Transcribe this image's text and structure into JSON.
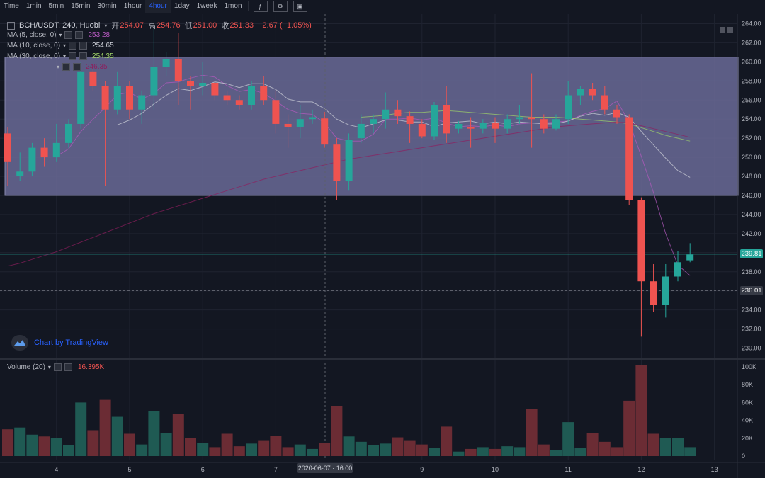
{
  "toolbar": {
    "intervals": [
      {
        "label": "Time",
        "active": false
      },
      {
        "label": "1min",
        "active": false
      },
      {
        "label": "5min",
        "active": false
      },
      {
        "label": "15min",
        "active": false
      },
      {
        "label": "30min",
        "active": false
      },
      {
        "label": "1hour",
        "active": false
      },
      {
        "label": "4hour",
        "active": true
      },
      {
        "label": "1day",
        "active": false
      },
      {
        "label": "1week",
        "active": false
      },
      {
        "label": "1mon",
        "active": false
      }
    ],
    "icons": [
      "indicator-icon",
      "settings-icon",
      "screenshot-icon"
    ]
  },
  "symbol": {
    "title": "BCH/USDT, 240, Huobi",
    "open_label": "开",
    "open": "254.07",
    "high_label": "高",
    "high": "254.76",
    "low_label": "低",
    "low": "251.00",
    "close_label": "收",
    "close": "251.33",
    "change": "−2.67 (−1.05%)"
  },
  "ma_legends": [
    {
      "label": "MA (5, close, 0)",
      "value": "253.28",
      "color": "#b75ac1"
    },
    {
      "label": "MA (10, close, 0)",
      "value": "254.65",
      "color": "#d1d4dc"
    },
    {
      "label": "MA (30, close, 0)",
      "value": "254.35",
      "color": "#a0d468"
    },
    {
      "label": "",
      "value": "246.35",
      "color": "#8e1e5e"
    }
  ],
  "brand": "Chart by TradingView",
  "volume_legend": {
    "label": "Volume (20)",
    "value": "16.395K"
  },
  "price_tags": [
    {
      "value": "239.81",
      "color": "#26a69a",
      "price": 239.81
    },
    {
      "value": "236.01",
      "color": "#363a45",
      "price": 236.01
    }
  ],
  "crosshair_time": "2020-06-07 · 16:00",
  "colors": {
    "up": "#26a69a",
    "down": "#ef5350",
    "band": "#6a6a96"
  },
  "chart_data": {
    "type": "candlestick",
    "title": "BCH/USDT, 240, Huobi",
    "price_axis": {
      "ylim": [
        229,
        265
      ],
      "ticks": [
        230,
        232,
        234,
        236,
        238,
        240,
        242,
        244,
        246,
        248,
        250,
        252,
        254,
        256,
        258,
        260,
        262,
        264
      ]
    },
    "time_axis": {
      "ticks": [
        {
          "label": "4",
          "idx": 4
        },
        {
          "label": "5",
          "idx": 10
        },
        {
          "label": "6",
          "idx": 16
        },
        {
          "label": "7",
          "idx": 22
        },
        {
          "label": "9",
          "idx": 34
        },
        {
          "label": "10",
          "idx": 40
        },
        {
          "label": "11",
          "idx": 46
        },
        {
          "label": "12",
          "idx": 52
        },
        {
          "label": "13",
          "idx": 58
        }
      ]
    },
    "highlight_band": {
      "y_from": 246.0,
      "y_to": 260.5
    },
    "candles": [
      {
        "o": 252.5,
        "h": 253.2,
        "l": 247.0,
        "c": 249.5
      },
      {
        "o": 248.0,
        "h": 250.5,
        "l": 247.5,
        "c": 248.5
      },
      {
        "o": 248.5,
        "h": 251.5,
        "l": 248.0,
        "c": 251.0
      },
      {
        "o": 251.0,
        "h": 252.0,
        "l": 249.0,
        "c": 250.0
      },
      {
        "o": 250.0,
        "h": 253.5,
        "l": 249.5,
        "c": 251.5
      },
      {
        "o": 251.5,
        "h": 254.0,
        "l": 251.0,
        "c": 253.5
      },
      {
        "o": 253.5,
        "h": 260.0,
        "l": 253.0,
        "c": 259.0
      },
      {
        "o": 259.0,
        "h": 259.5,
        "l": 257.0,
        "c": 257.5
      },
      {
        "o": 257.5,
        "h": 258.0,
        "l": 247.0,
        "c": 255.0
      },
      {
        "o": 255.0,
        "h": 259.0,
        "l": 254.5,
        "c": 257.5
      },
      {
        "o": 257.5,
        "h": 258.0,
        "l": 254.0,
        "c": 255.0
      },
      {
        "o": 255.0,
        "h": 257.0,
        "l": 253.5,
        "c": 256.5
      },
      {
        "o": 256.5,
        "h": 263.5,
        "l": 255.0,
        "c": 259.5
      },
      {
        "o": 259.5,
        "h": 261.0,
        "l": 258.5,
        "c": 260.3
      },
      {
        "o": 260.3,
        "h": 263.0,
        "l": 255.5,
        "c": 258.0
      },
      {
        "o": 258.0,
        "h": 258.5,
        "l": 255.0,
        "c": 257.5
      },
      {
        "o": 257.5,
        "h": 260.0,
        "l": 256.5,
        "c": 257.8
      },
      {
        "o": 257.8,
        "h": 258.0,
        "l": 256.0,
        "c": 256.5
      },
      {
        "o": 256.5,
        "h": 257.0,
        "l": 255.5,
        "c": 256.0
      },
      {
        "o": 256.0,
        "h": 256.5,
        "l": 255.0,
        "c": 255.5
      },
      {
        "o": 255.5,
        "h": 258.0,
        "l": 255.0,
        "c": 257.5
      },
      {
        "o": 257.5,
        "h": 258.5,
        "l": 255.5,
        "c": 256.0
      },
      {
        "o": 256.0,
        "h": 257.0,
        "l": 252.5,
        "c": 253.5
      },
      {
        "o": 253.5,
        "h": 254.5,
        "l": 251.0,
        "c": 253.2
      },
      {
        "o": 253.2,
        "h": 255.5,
        "l": 252.0,
        "c": 254.0
      },
      {
        "o": 254.0,
        "h": 255.0,
        "l": 253.5,
        "c": 254.2
      },
      {
        "o": 254.07,
        "h": 254.76,
        "l": 251.0,
        "c": 251.33
      },
      {
        "o": 251.33,
        "h": 252.0,
        "l": 245.5,
        "c": 247.5
      },
      {
        "o": 247.5,
        "h": 252.5,
        "l": 246.5,
        "c": 251.8
      },
      {
        "o": 252.0,
        "h": 254.5,
        "l": 251.5,
        "c": 253.5
      },
      {
        "o": 253.5,
        "h": 254.5,
        "l": 252.5,
        "c": 254.0
      },
      {
        "o": 254.0,
        "h": 256.8,
        "l": 253.0,
        "c": 255.0
      },
      {
        "o": 255.0,
        "h": 256.0,
        "l": 253.5,
        "c": 254.3
      },
      {
        "o": 254.3,
        "h": 254.8,
        "l": 251.5,
        "c": 253.5
      },
      {
        "o": 253.5,
        "h": 254.0,
        "l": 252.0,
        "c": 252.2
      },
      {
        "o": 252.2,
        "h": 255.8,
        "l": 251.8,
        "c": 255.5
      },
      {
        "o": 255.5,
        "h": 257.5,
        "l": 251.5,
        "c": 252.5
      },
      {
        "o": 253.0,
        "h": 253.8,
        "l": 252.5,
        "c": 253.5
      },
      {
        "o": 253.2,
        "h": 254.2,
        "l": 251.0,
        "c": 253.0
      },
      {
        "o": 253.0,
        "h": 254.0,
        "l": 252.5,
        "c": 253.6
      },
      {
        "o": 253.6,
        "h": 254.2,
        "l": 251.5,
        "c": 253.0
      },
      {
        "o": 253.0,
        "h": 254.5,
        "l": 252.5,
        "c": 254.0
      },
      {
        "o": 254.0,
        "h": 255.5,
        "l": 253.5,
        "c": 254.2
      },
      {
        "o": 254.2,
        "h": 258.8,
        "l": 251.0,
        "c": 254.0
      },
      {
        "o": 254.0,
        "h": 254.5,
        "l": 252.5,
        "c": 253.0
      },
      {
        "o": 253.0,
        "h": 254.5,
        "l": 252.8,
        "c": 254.0
      },
      {
        "o": 254.0,
        "h": 258.0,
        "l": 253.5,
        "c": 256.5
      },
      {
        "o": 256.5,
        "h": 257.5,
        "l": 255.5,
        "c": 257.2
      },
      {
        "o": 257.2,
        "h": 257.8,
        "l": 256.0,
        "c": 256.5
      },
      {
        "o": 256.5,
        "h": 257.5,
        "l": 254.5,
        "c": 255.0
      },
      {
        "o": 255.0,
        "h": 255.5,
        "l": 253.5,
        "c": 254.2
      },
      {
        "o": 254.2,
        "h": 254.5,
        "l": 245.0,
        "c": 245.5
      },
      {
        "o": 245.5,
        "h": 245.8,
        "l": 231.2,
        "c": 237.0
      },
      {
        "o": 237.0,
        "h": 238.8,
        "l": 233.8,
        "c": 234.5
      },
      {
        "o": 234.5,
        "h": 238.8,
        "l": 233.2,
        "c": 237.5
      },
      {
        "o": 237.5,
        "h": 240.2,
        "l": 237.0,
        "c": 239.0
      },
      {
        "o": 239.2,
        "h": 241.0,
        "l": 239.0,
        "c": 239.81
      }
    ],
    "volume": {
      "ylim": [
        0,
        100000
      ],
      "ticks": [
        0,
        20000,
        40000,
        60000,
        80000,
        100000
      ],
      "tick_labels": [
        "0",
        "20K",
        "40K",
        "60K",
        "80K",
        "100K"
      ],
      "values": [
        30000,
        32000,
        24000,
        22000,
        20000,
        12000,
        60000,
        29000,
        63000,
        44000,
        25000,
        13000,
        50000,
        26000,
        47000,
        20000,
        15000,
        10000,
        25000,
        11000,
        14000,
        17000,
        23000,
        10000,
        13000,
        8000,
        15000,
        56000,
        22000,
        16000,
        12000,
        14000,
        21000,
        17000,
        13000,
        9000,
        33000,
        5000,
        8000,
        10000,
        8000,
        11000,
        10000,
        53000,
        13000,
        7000,
        38000,
        9000,
        26000,
        16000,
        10000,
        62000,
        102000,
        25000,
        20000,
        20000,
        10000
      ]
    },
    "ma_lines": [
      {
        "name": "MA (5, close, 0)",
        "color": "#b75ac1",
        "values": [
          null,
          null,
          null,
          null,
          250.1,
          250.9,
          252.7,
          254.0,
          255.2,
          256.6,
          256.8,
          256.1,
          256.7,
          257.8,
          257.9,
          258.3,
          258.6,
          258.4,
          257.5,
          256.9,
          257.1,
          256.7,
          255.9,
          255.0,
          254.6,
          254.5,
          253.6,
          252.0,
          251.7,
          251.7,
          252.4,
          254.0,
          254.0,
          254.1,
          253.9,
          254.1,
          253.6,
          253.2,
          253.3,
          253.2,
          253.4,
          253.2,
          253.5,
          253.6,
          253.6,
          253.7,
          253.8,
          254.4,
          254.8,
          255.1,
          255.9,
          253.7,
          250.1,
          246.3,
          242.0,
          238.7,
          237.6
        ]
      },
      {
        "name": "MA (10, close, 0)",
        "color": "#d1d4dc",
        "values": [
          null,
          null,
          null,
          null,
          null,
          null,
          null,
          null,
          null,
          253.4,
          253.9,
          254.6,
          255.6,
          256.5,
          257.2,
          257.0,
          257.4,
          257.9,
          257.7,
          257.3,
          257.7,
          257.7,
          257.1,
          256.1,
          255.8,
          255.8,
          255.1,
          254.0,
          253.4,
          253.1,
          253.5,
          253.9,
          253.9,
          253.7,
          253.7,
          253.2,
          253.6,
          253.7,
          253.8,
          253.5,
          253.7,
          253.5,
          253.7,
          253.6,
          253.5,
          253.5,
          253.8,
          254.3,
          254.6,
          254.4,
          254.7,
          254.2,
          252.7,
          251.3,
          249.9,
          248.6,
          247.9
        ]
      },
      {
        "name": "MA (30, close, 0)",
        "color": "#a0d468",
        "values": [
          null,
          null,
          null,
          null,
          null,
          null,
          null,
          null,
          null,
          null,
          null,
          null,
          null,
          null,
          null,
          null,
          null,
          null,
          null,
          null,
          null,
          null,
          null,
          null,
          null,
          null,
          null,
          null,
          null,
          254.2,
          254.3,
          254.4,
          254.6,
          254.7,
          254.7,
          254.8,
          254.9,
          254.8,
          254.7,
          254.6,
          254.5,
          254.4,
          254.3,
          254.2,
          254.2,
          254.2,
          254.1,
          254.0,
          253.9,
          253.8,
          253.7,
          253.5,
          253.1,
          252.7,
          252.3,
          252.0,
          251.7
        ]
      },
      {
        "name": "",
        "color": "#8e1e5e",
        "values": [
          238.6,
          238.9,
          239.3,
          239.7,
          240.1,
          240.6,
          241.1,
          241.6,
          242.1,
          242.6,
          243.1,
          243.6,
          244.1,
          244.5,
          244.9,
          245.3,
          245.7,
          246.1,
          246.5,
          246.9,
          247.3,
          247.7,
          248.0,
          248.3,
          248.6,
          248.9,
          249.2,
          249.5,
          249.8,
          250.0,
          250.2,
          250.4,
          250.6,
          250.8,
          251.0,
          251.2,
          251.4,
          251.6,
          251.8,
          252.0,
          252.2,
          252.4,
          252.6,
          252.8,
          253.0,
          253.2,
          253.3,
          253.4,
          253.5,
          253.6,
          253.7,
          253.6,
          253.3,
          253.0,
          252.7,
          252.4,
          252.1
        ]
      }
    ]
  }
}
